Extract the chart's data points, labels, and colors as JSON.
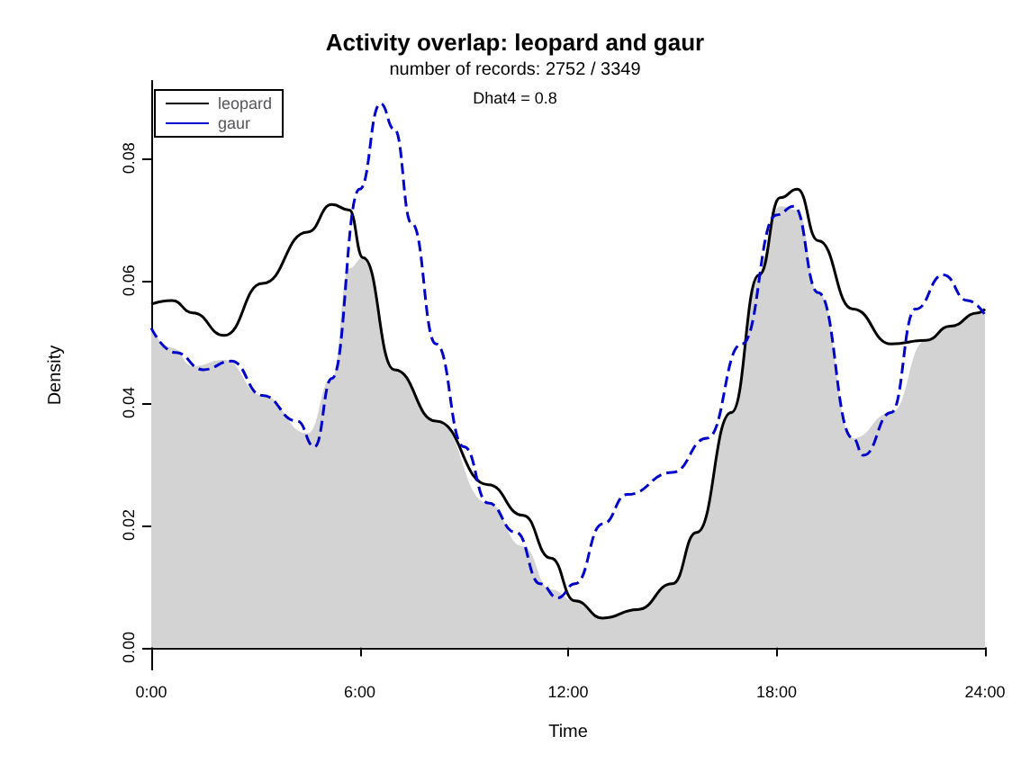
{
  "chart_data": {
    "type": "line",
    "title": "Activity overlap: leopard and gaur",
    "subtitle": "number of records: 2752 / 3349",
    "xlabel": "Time",
    "ylabel": "Density",
    "annotations": [
      "Dhat4 = 0.8"
    ],
    "xlim": [
      0,
      24
    ],
    "xticks": [
      {
        "value": 0,
        "label": "0:00"
      },
      {
        "value": 6,
        "label": "6:00"
      },
      {
        "value": 12,
        "label": "12:00"
      },
      {
        "value": 18,
        "label": "18:00"
      },
      {
        "value": 24,
        "label": "24:00"
      }
    ],
    "ylim": [
      -0.0036,
      0.0926
    ],
    "yticks": [
      {
        "value": 0,
        "label": "0.00"
      },
      {
        "value": 0.02,
        "label": "0.02"
      },
      {
        "value": 0.04,
        "label": "0.04"
      },
      {
        "value": 0.06,
        "label": "0.06"
      },
      {
        "value": 0.08,
        "label": "0.08"
      }
    ],
    "grid": false,
    "legend": "top left",
    "series": [
      {
        "type": "area",
        "color": "#d3d3d3",
        "x": [
          0,
          0.6,
          1.2,
          2.1,
          3.2,
          4.5,
          5.2,
          5.7,
          6.1,
          7.0,
          8.2,
          9.7,
          10.7,
          11.5,
          12.2,
          13.0,
          14.0,
          15.0,
          15.7,
          16.7,
          17.5,
          18.1,
          18.6,
          19.2,
          20.2,
          21.3,
          22.3,
          23.0,
          23.8,
          24
        ],
        "values": [
          0.0522,
          0.049,
          0.046,
          0.047,
          0.0412,
          0.035,
          0.044,
          0.062,
          0.0637,
          0.0454,
          0.037,
          0.0236,
          0.0165,
          0.0095,
          0.0076,
          0.0048,
          0.0062,
          0.0104,
          0.0188,
          0.0384,
          0.0609,
          0.0721,
          0.0715,
          0.058,
          0.0342,
          0.0384,
          0.0502,
          0.0525,
          0.0547,
          0.0544
        ]
      },
      {
        "name": "leopard",
        "type": "line",
        "color": "#000000",
        "line_style": "solid",
        "x": [
          0,
          0.6,
          1.2,
          2.1,
          3.2,
          4.5,
          5.2,
          5.7,
          6.1,
          7.0,
          8.2,
          9.7,
          10.7,
          11.5,
          12.2,
          13.0,
          14.0,
          15.0,
          15.7,
          16.7,
          17.5,
          18.1,
          18.6,
          19.2,
          20.2,
          21.3,
          22.3,
          23.0,
          23.8,
          24
        ],
        "values": [
          0.0561,
          0.0567,
          0.0547,
          0.051,
          0.0595,
          0.0679,
          0.0724,
          0.0715,
          0.0637,
          0.0454,
          0.037,
          0.0266,
          0.0216,
          0.0146,
          0.0076,
          0.0048,
          0.0062,
          0.0104,
          0.0188,
          0.0384,
          0.0609,
          0.0735,
          0.0749,
          0.0665,
          0.0553,
          0.0496,
          0.0502,
          0.0525,
          0.0547,
          0.0553
        ]
      },
      {
        "name": "gaur",
        "type": "line",
        "color": "#0000cd",
        "line_style": "dashed",
        "x": [
          0,
          0.7,
          1.5,
          2.3,
          3.2,
          4.2,
          4.7,
          5.2,
          6.0,
          6.6,
          7.0,
          7.5,
          8.2,
          9.0,
          9.7,
          10.5,
          11.2,
          11.7,
          12.2,
          13.0,
          13.7,
          15.0,
          16.0,
          17.0,
          18.0,
          18.5,
          19.2,
          20.2,
          20.5,
          21.3,
          22.0,
          22.8,
          23.5,
          24
        ],
        "values": [
          0.0522,
          0.0482,
          0.0454,
          0.0468,
          0.0412,
          0.037,
          0.0328,
          0.044,
          0.0749,
          0.0889,
          0.0847,
          0.0693,
          0.0496,
          0.0328,
          0.0236,
          0.0188,
          0.0104,
          0.0081,
          0.0104,
          0.0202,
          0.025,
          0.0286,
          0.0342,
          0.0496,
          0.0707,
          0.0721,
          0.058,
          0.0342,
          0.0314,
          0.0384,
          0.0553,
          0.0609,
          0.0567,
          0.0544
        ]
      }
    ]
  }
}
